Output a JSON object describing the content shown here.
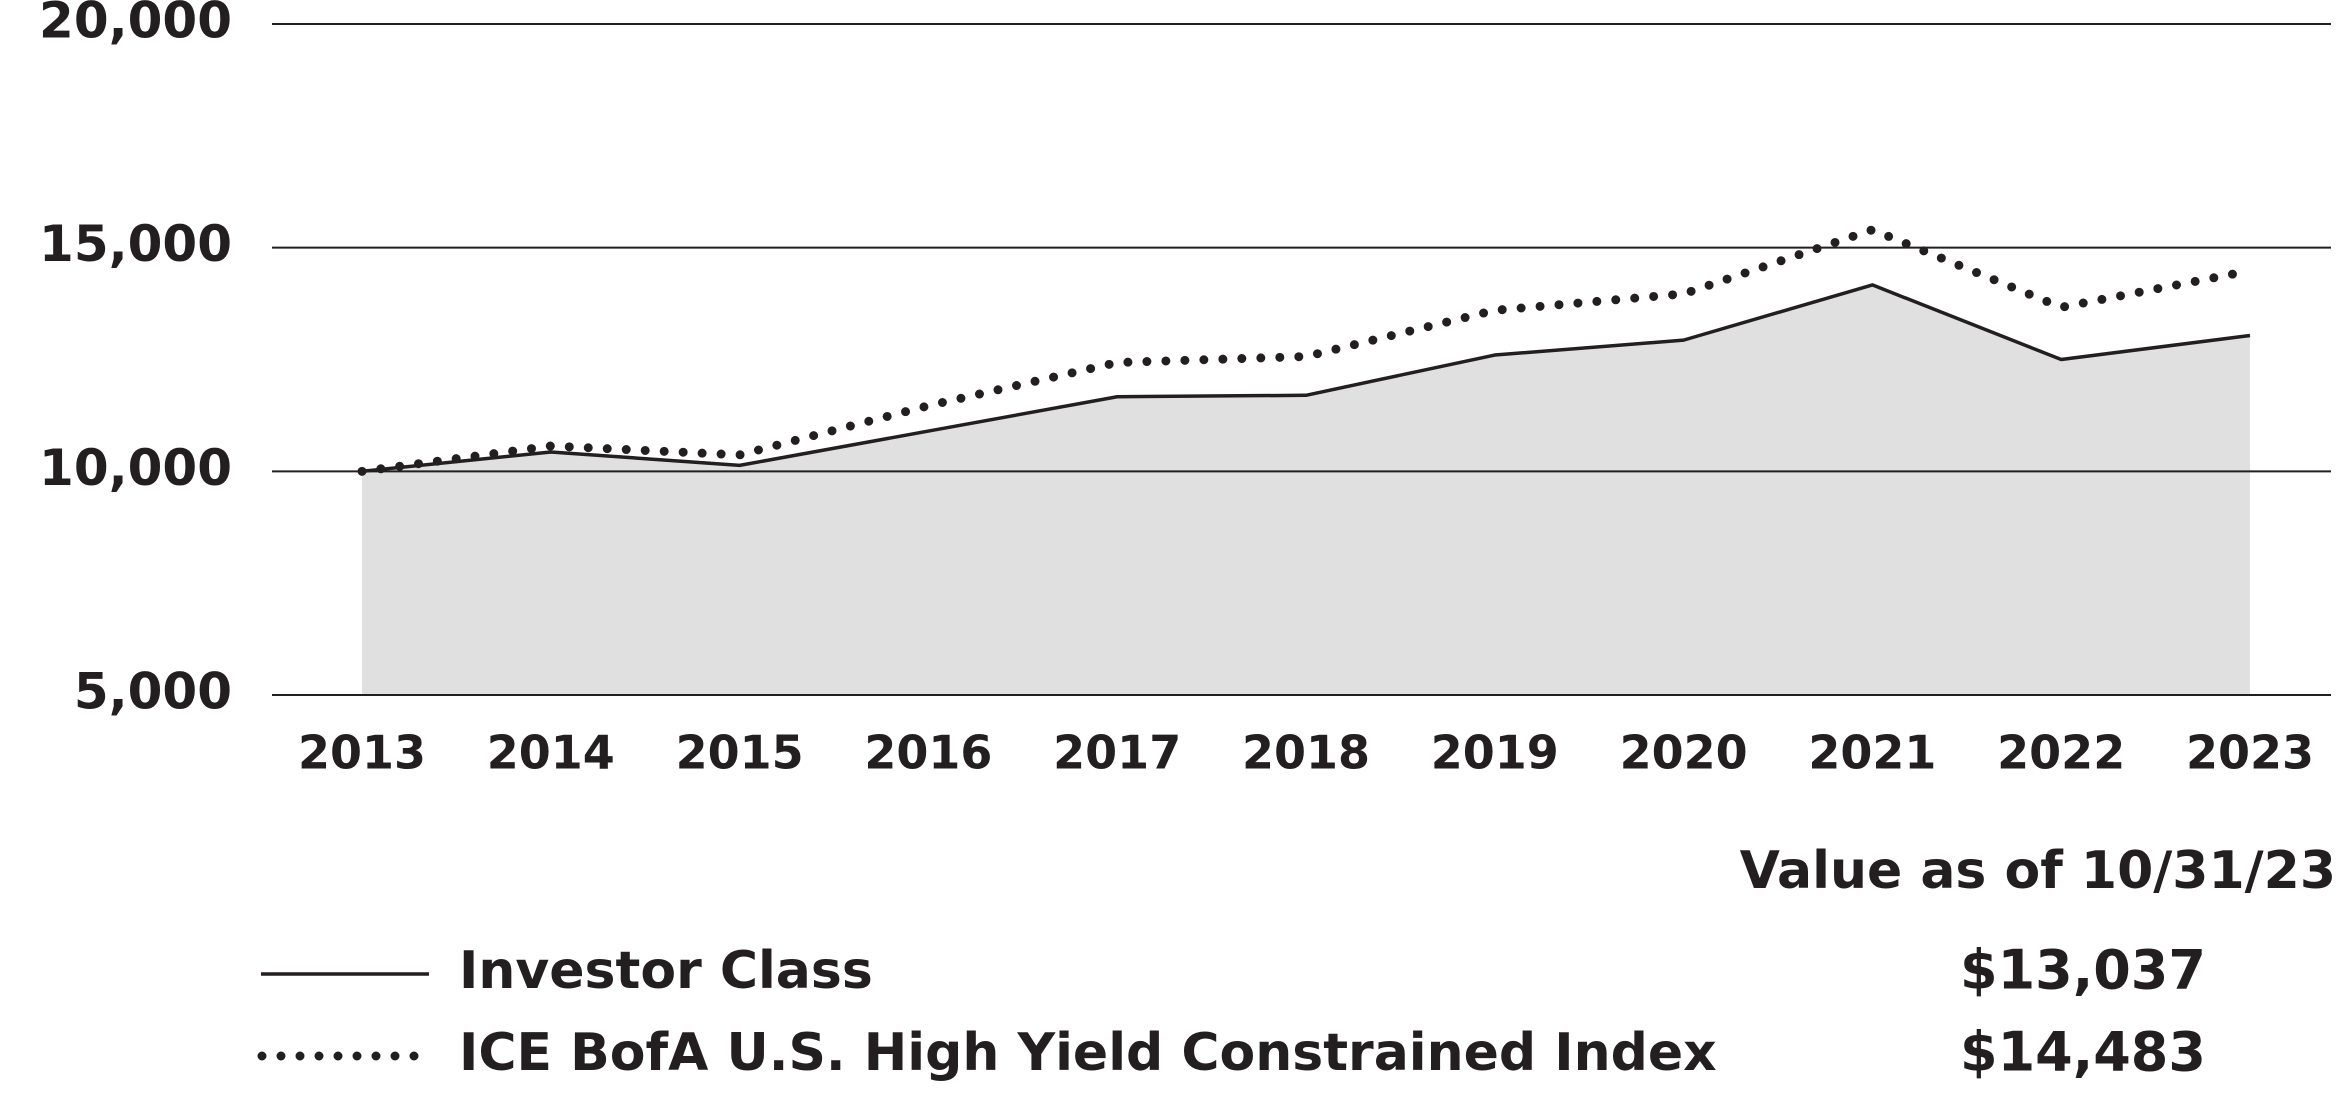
{
  "chart_data": {
    "type": "line",
    "categories": [
      "2013",
      "2014",
      "2015",
      "2016",
      "2017",
      "2018",
      "2019",
      "2020",
      "2021",
      "2022",
      "2023"
    ],
    "series": [
      {
        "name": "Investor Class",
        "color": "#231f20",
        "fill": "#e0e0e0",
        "style": "solid",
        "values": [
          10000,
          10433,
          10133,
          10900,
          11667,
          11700,
          12600,
          12933,
          14167,
          12500,
          13037
        ],
        "value_labels": [
          null,
          null,
          null,
          null,
          null,
          null,
          null,
          null,
          null,
          null,
          "$13,037"
        ]
      },
      {
        "name": "ICE BofA U.S. High Yield Constrained Index",
        "color": "#231f20",
        "style": "dotted",
        "values": [
          10000,
          10567,
          10367,
          11467,
          12433,
          12567,
          13600,
          13967,
          15400,
          13667,
          14483
        ],
        "value_labels": [
          null,
          null,
          null,
          null,
          null,
          null,
          null,
          null,
          null,
          null,
          "$14,483"
        ]
      }
    ],
    "ylim": [
      5000,
      20000
    ],
    "yticks": [
      {
        "value": 5000,
        "label": "5,000"
      },
      {
        "value": 10000,
        "label": "10,000"
      },
      {
        "value": 15000,
        "label": "15,000"
      },
      {
        "value": 20000,
        "label": "20,000"
      }
    ],
    "grid": true,
    "value_header": "Value as of 10/31/23"
  }
}
